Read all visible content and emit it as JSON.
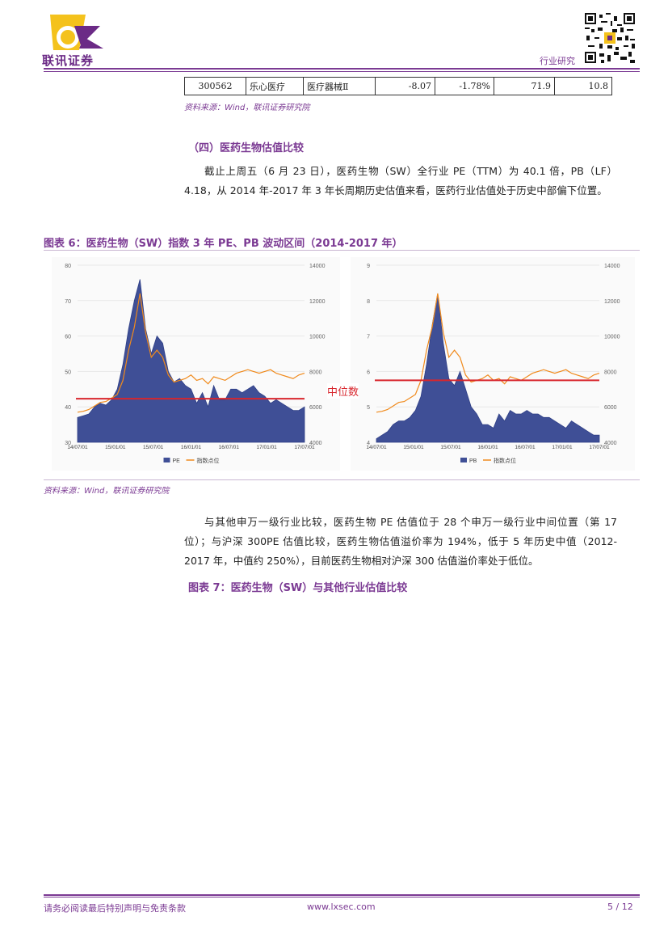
{
  "header": {
    "logo_text": "联讯证券",
    "category": "行业研究"
  },
  "table_row": {
    "code": "300562",
    "name": "乐心医疗",
    "industry": "医疗器械Ⅱ",
    "v1": "-8.07",
    "v2": "-1.78%",
    "v3": "71.9",
    "v4": "10.8"
  },
  "source_1": "资料来源：Wind，联讯证券研究院",
  "section_title": "（四）医药生物估值比较",
  "para_1": "截止上周五（6 月 23 日），医药生物（SW）全行业 PE（TTM）为 40.1 倍，PB（LF）4.18，从 2014 年-2017 年 3 年长周期历史估值来看，医药行业估值处于历史中部偏下位置。",
  "figure_6_title": "图表 6：医药生物（SW）指数 3 年 PE、PB 波动区间（2014-2017 年）",
  "median_label": "中位数",
  "source_2": "资料来源：Wind，联讯证券研究院",
  "para_2": "与其他申万一级行业比较，医药生物 PE 估值位于 28 个申万一级行业中间位置（第 17 位）；与沪深 300PE 估值比较，医药生物估值溢价率为 194%，低于 5 年历史中值（2012-2017 年，中值约 250%），目前医药生物相对沪深 300 估值溢价率处于低位。",
  "figure_7_title": "图表 7：医药生物（SW）与其他行业估值比较",
  "footer": {
    "disclaimer": "请务必阅读最后特别声明与免责条款",
    "website": "www.lxsec.com",
    "page": "5 / 12"
  },
  "colors": {
    "brand": "#7b3a93",
    "area": "#3f4f96",
    "line": "#f08a1c",
    "median": "#d8262d"
  },
  "chart_data": [
    {
      "type": "area",
      "title": "PE",
      "x_ticks": [
        "14/07/01",
        "15/01/01",
        "15/07/01",
        "16/01/01",
        "16/07/01",
        "17/01/01",
        "17/07/01"
      ],
      "left_axis_ticks": [
        "80",
        "70",
        "60",
        "50",
        "40",
        "30"
      ],
      "ylim": [
        30,
        80
      ],
      "right_axis_ticks": [
        "14000",
        "12000",
        "10000",
        "8000",
        "6000",
        "4000"
      ],
      "ylim_right": [
        4000,
        14000
      ],
      "legend": [
        "PE",
        "指数点位"
      ],
      "median": 42.3,
      "series": [
        {
          "name": "PE",
          "values": [
            37,
            37.5,
            38,
            40,
            41,
            40.5,
            42,
            45,
            52,
            62,
            70,
            76,
            62,
            55,
            60,
            58,
            50,
            47,
            48,
            46,
            45,
            41,
            44,
            40,
            46,
            42,
            42,
            45,
            45,
            44,
            45,
            46,
            44,
            43,
            41,
            42,
            41,
            40,
            39,
            39,
            40
          ]
        },
        {
          "name": "指数点位",
          "values": [
            5700,
            5750,
            5850,
            6050,
            6250,
            6300,
            6500,
            6700,
            7500,
            9200,
            10500,
            12400,
            10200,
            8800,
            9200,
            8800,
            7800,
            7400,
            7500,
            7600,
            7800,
            7500,
            7600,
            7300,
            7700,
            7600,
            7500,
            7700,
            7900,
            8000,
            8100,
            8000,
            7900,
            8000,
            8100,
            7900,
            7800,
            7700,
            7600,
            7800,
            7900
          ]
        }
      ]
    },
    {
      "type": "area",
      "title": "PB",
      "x_ticks": [
        "14/07/01",
        "15/01/01",
        "15/07/01",
        "16/01/01",
        "16/07/01",
        "17/01/01",
        "17/07/01"
      ],
      "left_axis_ticks": [
        "9",
        "8",
        "7",
        "6",
        "5",
        "4"
      ],
      "ylim": [
        4,
        9
      ],
      "right_axis_ticks": [
        "14000",
        "12000",
        "10000",
        "8000",
        "6000",
        "4000"
      ],
      "ylim_right": [
        4000,
        14000
      ],
      "legend": [
        "PB",
        "指数点位"
      ],
      "median": 5.75,
      "series": [
        {
          "name": "PB",
          "values": [
            4.1,
            4.2,
            4.3,
            4.5,
            4.6,
            4.6,
            4.7,
            4.9,
            5.3,
            6.2,
            7.3,
            8.2,
            6.8,
            5.8,
            5.6,
            6.0,
            5.5,
            5.0,
            4.8,
            4.5,
            4.5,
            4.4,
            4.8,
            4.6,
            4.9,
            4.8,
            4.8,
            4.9,
            4.8,
            4.8,
            4.7,
            4.7,
            4.6,
            4.5,
            4.4,
            4.6,
            4.5,
            4.4,
            4.3,
            4.2,
            4.2
          ]
        },
        {
          "name": "指数点位",
          "values": [
            5700,
            5750,
            5850,
            6050,
            6250,
            6300,
            6500,
            6700,
            7500,
            9200,
            10500,
            12400,
            10200,
            8800,
            9200,
            8800,
            7800,
            7400,
            7500,
            7600,
            7800,
            7500,
            7600,
            7300,
            7700,
            7600,
            7500,
            7700,
            7900,
            8000,
            8100,
            8000,
            7900,
            8000,
            8100,
            7900,
            7800,
            7700,
            7600,
            7800,
            7900
          ]
        }
      ]
    }
  ]
}
